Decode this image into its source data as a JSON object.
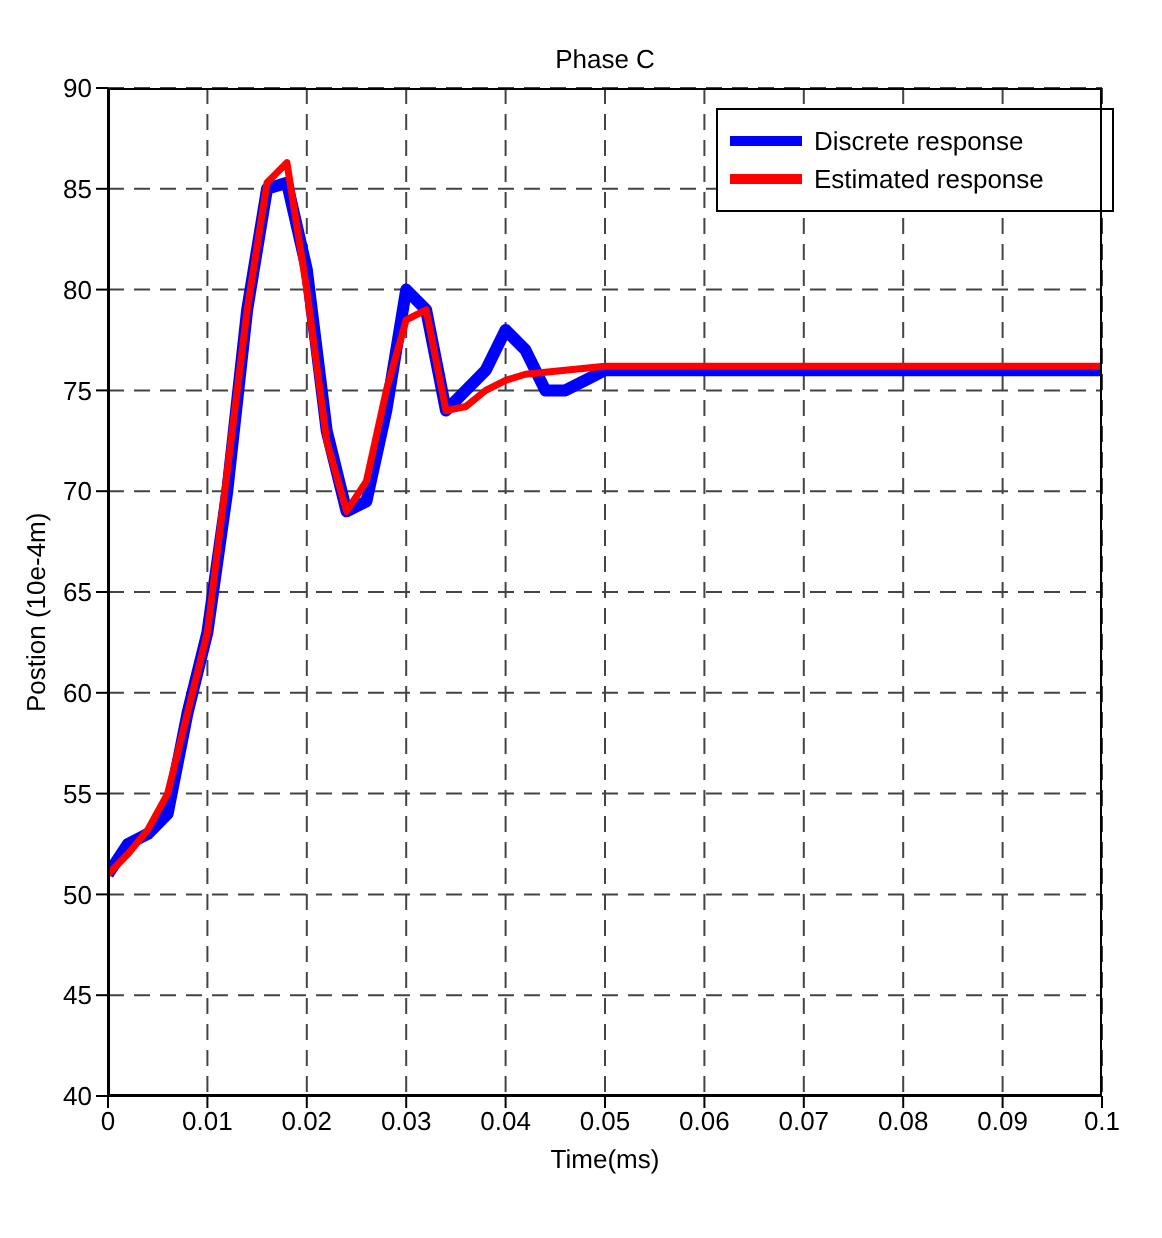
{
  "chart_data": {
    "type": "line",
    "title": "Phase C",
    "xlabel": "Time(ms)",
    "ylabel": "Postion (10e-4m)",
    "xlim": [
      0,
      0.1
    ],
    "xticks": [
      0,
      0.01,
      0.02,
      0.03,
      0.04,
      0.05,
      0.06,
      0.07,
      0.08,
      0.09,
      0.1
    ],
    "ylim": [
      40,
      90
    ],
    "yticks": [
      40,
      45,
      50,
      55,
      60,
      65,
      70,
      75,
      80,
      85,
      90
    ],
    "grid": true,
    "legend": "top right",
    "marker": "none",
    "line_style": "solid",
    "series": [
      {
        "name": "Discrete response",
        "color": "#0000ff",
        "x": [
          0,
          0.002,
          0.004,
          0.006,
          0.008,
          0.01,
          0.012,
          0.014,
          0.016,
          0.018,
          0.02,
          0.022,
          0.024,
          0.026,
          0.028,
          0.03,
          0.032,
          0.034,
          0.036,
          0.038,
          0.04,
          0.042,
          0.044,
          0.046,
          0.048,
          0.05,
          0.1
        ],
        "values": [
          51,
          52.5,
          53,
          54,
          59,
          63,
          70,
          79,
          85,
          85.3,
          81,
          73,
          69,
          69.5,
          74,
          80,
          79,
          74,
          75,
          76,
          78,
          77,
          75,
          75,
          75.5,
          76,
          76
        ]
      },
      {
        "name": "Estimated response",
        "color": "#ff0000",
        "x": [
          0,
          0.002,
          0.004,
          0.006,
          0.008,
          0.01,
          0.012,
          0.014,
          0.016,
          0.018,
          0.02,
          0.022,
          0.024,
          0.026,
          0.028,
          0.03,
          0.032,
          0.034,
          0.036,
          0.038,
          0.04,
          0.042,
          0.044,
          0.046,
          0.05,
          0.1
        ],
        "values": [
          51,
          52,
          53.2,
          55,
          59,
          63,
          71,
          79,
          85.3,
          86.3,
          80,
          72.5,
          69,
          70.5,
          75,
          78.5,
          79,
          74,
          74.2,
          75,
          75.5,
          75.8,
          75.9,
          76,
          76.2,
          76.2
        ]
      }
    ]
  }
}
